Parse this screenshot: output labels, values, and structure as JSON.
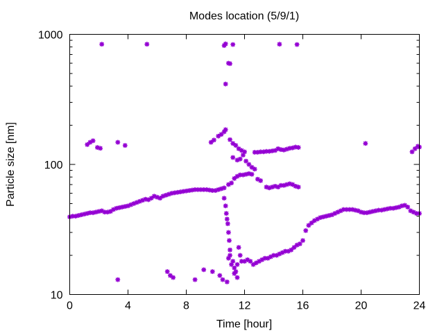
{
  "chart_data": {
    "type": "scatter",
    "title": "Modes location (5/9/1)",
    "xlabel": "Time [hour]",
    "ylabel": "Particle size [nm]",
    "xlim": [
      0,
      24
    ],
    "ylim": [
      10,
      1000
    ],
    "yscale": "log",
    "grid": false,
    "legend": "none",
    "marker": "asterisk",
    "color": "#9400d3",
    "xticks": [
      0,
      4,
      8,
      12,
      16,
      20,
      24
    ],
    "xtick_labels": [
      "0",
      "4",
      "8",
      "12",
      "16",
      "20",
      "24"
    ],
    "yticks": [
      10,
      100,
      1000
    ],
    "ytick_labels": [
      "10",
      "100",
      "1000"
    ],
    "series": [
      {
        "points": [
          [
            0.0,
            39.5
          ],
          [
            0.2,
            40
          ],
          [
            0.4,
            40
          ],
          [
            0.6,
            40.5
          ],
          [
            0.8,
            41
          ],
          [
            1.0,
            41.5
          ],
          [
            1.2,
            42
          ],
          [
            1.4,
            42.5
          ],
          [
            1.6,
            42.5
          ],
          [
            1.8,
            43
          ],
          [
            2.0,
            43.5
          ],
          [
            2.2,
            44
          ],
          [
            2.4,
            43
          ],
          [
            2.6,
            43
          ],
          [
            2.8,
            43.5
          ],
          [
            3.0,
            45
          ],
          [
            3.2,
            46
          ],
          [
            3.4,
            46.5
          ],
          [
            3.6,
            47
          ],
          [
            3.8,
            47.5
          ],
          [
            4.0,
            48
          ],
          [
            4.2,
            49
          ],
          [
            4.4,
            50
          ],
          [
            4.6,
            51
          ],
          [
            4.8,
            52
          ],
          [
            5.0,
            53
          ],
          [
            5.2,
            54
          ],
          [
            5.4,
            53.5
          ],
          [
            5.6,
            55
          ],
          [
            5.8,
            57
          ],
          [
            6.0,
            56
          ],
          [
            6.2,
            55
          ],
          [
            6.4,
            57
          ],
          [
            6.6,
            58
          ],
          [
            6.8,
            59
          ],
          [
            7.0,
            60
          ],
          [
            7.2,
            60.5
          ],
          [
            7.4,
            61
          ],
          [
            7.6,
            61.5
          ],
          [
            7.8,
            62
          ],
          [
            8.0,
            62.5
          ],
          [
            8.2,
            63
          ],
          [
            8.4,
            63.5
          ],
          [
            8.6,
            64
          ],
          [
            8.8,
            64
          ],
          [
            9.0,
            64
          ],
          [
            9.2,
            64
          ],
          [
            9.4,
            64
          ],
          [
            9.6,
            63.5
          ],
          [
            9.8,
            63
          ],
          [
            10.0,
            63
          ],
          [
            10.2,
            64
          ],
          [
            10.4,
            65
          ],
          [
            10.6,
            66
          ],
          [
            10.9,
            70
          ],
          [
            11.1,
            72
          ],
          [
            11.3,
            78
          ],
          [
            11.5,
            81
          ],
          [
            11.7,
            83
          ],
          [
            11.9,
            83
          ],
          [
            12.1,
            84
          ],
          [
            12.3,
            85
          ],
          [
            12.5,
            84
          ],
          [
            11.2,
            113
          ],
          [
            11.5,
            108
          ],
          [
            11.7,
            110
          ],
          [
            11.9,
            118
          ],
          [
            12.1,
            106
          ],
          [
            12.3,
            100
          ],
          [
            12.5,
            95
          ],
          [
            12.7,
            92
          ],
          [
            12.9,
            77
          ],
          [
            13.1,
            75
          ],
          [
            12.7,
            124
          ],
          [
            12.9,
            124
          ],
          [
            13.1,
            125
          ],
          [
            13.3,
            125
          ],
          [
            13.5,
            126
          ],
          [
            13.7,
            126
          ],
          [
            13.9,
            127
          ],
          [
            14.1,
            128
          ],
          [
            14.3,
            132
          ],
          [
            14.5,
            130
          ],
          [
            14.7,
            129
          ],
          [
            14.9,
            131
          ],
          [
            15.1,
            133
          ],
          [
            15.3,
            134
          ],
          [
            15.5,
            136
          ],
          [
            15.7,
            135
          ],
          [
            13.5,
            67
          ],
          [
            13.7,
            66
          ],
          [
            13.9,
            67
          ],
          [
            14.1,
            68
          ],
          [
            14.3,
            67
          ],
          [
            14.5,
            69
          ],
          [
            14.7,
            69
          ],
          [
            14.9,
            70
          ],
          [
            15.1,
            71
          ],
          [
            15.3,
            70
          ],
          [
            15.5,
            68
          ],
          [
            15.7,
            67
          ],
          [
            1.2,
            142
          ],
          [
            1.4,
            148
          ],
          [
            1.6,
            152
          ],
          [
            1.9,
            135
          ],
          [
            2.1,
            133
          ],
          [
            3.3,
            148
          ],
          [
            3.8,
            140
          ],
          [
            9.7,
            148
          ],
          [
            9.9,
            154
          ],
          [
            10.2,
            165
          ],
          [
            10.4,
            170
          ],
          [
            10.6,
            178
          ],
          [
            10.7,
            185
          ],
          [
            11.0,
            155
          ],
          [
            11.2,
            145
          ],
          [
            11.4,
            140
          ],
          [
            11.6,
            132
          ],
          [
            11.8,
            128
          ],
          [
            12.0,
            125
          ],
          [
            2.2,
            840
          ],
          [
            5.3,
            840
          ],
          [
            10.6,
            820
          ],
          [
            10.7,
            845
          ],
          [
            11.2,
            835
          ],
          [
            14.4,
            840
          ],
          [
            15.6,
            835
          ],
          [
            10.9,
            600
          ],
          [
            11.0,
            595
          ],
          [
            10.7,
            415
          ],
          [
            3.3,
            13
          ],
          [
            6.7,
            15
          ],
          [
            6.9,
            14
          ],
          [
            7.1,
            13.5
          ],
          [
            8.6,
            13
          ],
          [
            9.2,
            15.5
          ],
          [
            9.8,
            15
          ],
          [
            10.3,
            14
          ],
          [
            10.5,
            13
          ],
          [
            10.8,
            12.5
          ],
          [
            11.3,
            14.5
          ],
          [
            11.5,
            13.5
          ],
          [
            10.6,
            55
          ],
          [
            10.7,
            48
          ],
          [
            10.75,
            42
          ],
          [
            10.8,
            38
          ],
          [
            10.85,
            35
          ],
          [
            10.9,
            30
          ],
          [
            10.95,
            26
          ],
          [
            11.0,
            22
          ],
          [
            11.0,
            20
          ],
          [
            10.9,
            19
          ],
          [
            11.1,
            17
          ],
          [
            11.2,
            18
          ],
          [
            11.3,
            16
          ],
          [
            11.4,
            15
          ],
          [
            11.5,
            17
          ],
          [
            11.6,
            23
          ],
          [
            11.7,
            20
          ],
          [
            11.8,
            18
          ],
          [
            12.0,
            18
          ],
          [
            12.2,
            18.5
          ],
          [
            12.4,
            18
          ],
          [
            12.6,
            17
          ],
          [
            12.8,
            17.5
          ],
          [
            13.0,
            18
          ],
          [
            13.2,
            18.5
          ],
          [
            13.4,
            19
          ],
          [
            13.6,
            19
          ],
          [
            13.8,
            19.5
          ],
          [
            14.0,
            20
          ],
          [
            14.2,
            20
          ],
          [
            14.4,
            20.5
          ],
          [
            14.6,
            21
          ],
          [
            14.8,
            21.5
          ],
          [
            15.0,
            21.5
          ],
          [
            15.2,
            22
          ],
          [
            15.4,
            23
          ],
          [
            15.6,
            24
          ],
          [
            15.8,
            24.5
          ],
          [
            16.0,
            26
          ],
          [
            16.2,
            31
          ],
          [
            16.4,
            34
          ],
          [
            16.6,
            35.5
          ],
          [
            16.8,
            37
          ],
          [
            17.0,
            38
          ],
          [
            17.2,
            39
          ],
          [
            17.4,
            39.5
          ],
          [
            17.6,
            40
          ],
          [
            17.8,
            40.5
          ],
          [
            18.0,
            41
          ],
          [
            18.2,
            42
          ],
          [
            18.4,
            43
          ],
          [
            18.6,
            44
          ],
          [
            18.8,
            45
          ],
          [
            19.0,
            45
          ],
          [
            19.2,
            45
          ],
          [
            19.4,
            45
          ],
          [
            19.6,
            44.5
          ],
          [
            19.8,
            44
          ],
          [
            20.0,
            43
          ],
          [
            20.2,
            42.5
          ],
          [
            20.4,
            42.5
          ],
          [
            20.6,
            43
          ],
          [
            20.8,
            43.5
          ],
          [
            21.0,
            44
          ],
          [
            21.2,
            44.5
          ],
          [
            21.4,
            44.5
          ],
          [
            21.6,
            45
          ],
          [
            21.8,
            45.5
          ],
          [
            22.0,
            46
          ],
          [
            22.2,
            46
          ],
          [
            22.4,
            46.5
          ],
          [
            22.6,
            47
          ],
          [
            22.8,
            48
          ],
          [
            23.0,
            48.5
          ],
          [
            23.2,
            47
          ],
          [
            23.4,
            44
          ],
          [
            23.6,
            43
          ],
          [
            23.8,
            42
          ],
          [
            24.0,
            42
          ],
          [
            20.3,
            145
          ],
          [
            23.5,
            125
          ],
          [
            23.7,
            132
          ],
          [
            23.9,
            138
          ],
          [
            24.0,
            136
          ]
        ]
      }
    ]
  }
}
